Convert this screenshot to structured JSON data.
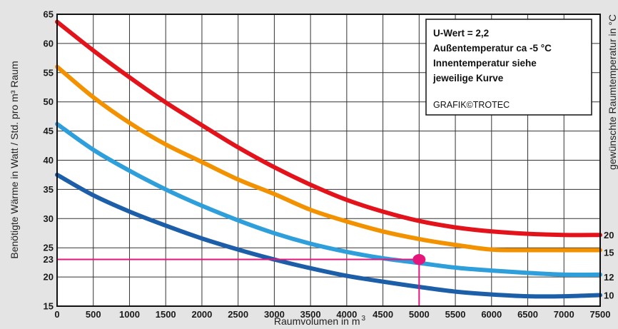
{
  "chart_data": {
    "type": "line",
    "xlabel": "Raumvolumen in m",
    "xlabel_sup": "3",
    "ylabel": "Benötigte Wärme in Watt / Std. pro m³ Raum",
    "ylabel_right": "gewünschte Raumtemperatur in °C",
    "xlim": [
      0,
      7500
    ],
    "ylim": [
      15,
      65
    ],
    "x_ticks": [
      0,
      500,
      1000,
      1500,
      2000,
      2500,
      3000,
      3500,
      4000,
      4500,
      5000,
      5500,
      6000,
      6500,
      7000,
      7500
    ],
    "y_ticks": [
      15,
      20,
      25,
      30,
      35,
      40,
      45,
      50,
      55,
      60,
      65
    ],
    "grid": true,
    "series": [
      {
        "name": "20",
        "color": "#e3131b",
        "x": [
          0,
          500,
          1000,
          1500,
          2000,
          2500,
          3000,
          3500,
          4000,
          4500,
          5000,
          5500,
          6000,
          6500,
          7000,
          7500
        ],
        "y": [
          63.7,
          58.8,
          54.2,
          49.9,
          46.0,
          42.2,
          38.8,
          35.8,
          33.2,
          31.2,
          29.6,
          28.5,
          27.8,
          27.4,
          27.2,
          27.2
        ]
      },
      {
        "name": "15",
        "color": "#f29200",
        "x": [
          0,
          500,
          1000,
          1500,
          2000,
          2500,
          3000,
          3500,
          4000,
          4500,
          5000,
          5500,
          6000,
          6500,
          7000,
          7500
        ],
        "y": [
          56.0,
          50.8,
          46.4,
          42.7,
          39.7,
          36.7,
          34.2,
          31.5,
          29.5,
          27.8,
          26.5,
          25.5,
          24.7,
          24.6,
          24.6,
          24.6
        ]
      },
      {
        "name": "12",
        "color": "#2f9fdb",
        "x": [
          0,
          500,
          1000,
          1500,
          2000,
          2500,
          3000,
          3500,
          4000,
          4500,
          5000,
          5500,
          6000,
          6500,
          7000,
          7500
        ],
        "y": [
          46.2,
          41.8,
          38.2,
          35.0,
          32.2,
          29.7,
          27.5,
          25.7,
          24.3,
          23.2,
          22.4,
          21.6,
          21.1,
          20.7,
          20.4,
          20.4
        ]
      },
      {
        "name": "10",
        "color": "#1d5ea8",
        "x": [
          0,
          500,
          1000,
          1500,
          2000,
          2500,
          3000,
          3500,
          4000,
          4500,
          5000,
          5500,
          6000,
          6500,
          7000,
          7500
        ],
        "y": [
          37.5,
          34.0,
          31.2,
          28.8,
          26.6,
          24.7,
          23.0,
          21.5,
          20.2,
          19.2,
          18.3,
          17.5,
          17.0,
          16.7,
          16.7,
          16.9
        ]
      }
    ],
    "highlight": {
      "x": 5000,
      "y": 23,
      "x_label": "5000",
      "y_label": "23",
      "color": "#e6157a"
    },
    "right_labels": [
      {
        "text": "20",
        "y": 27.2,
        "color": "#111111"
      },
      {
        "text": "15",
        "y": 24.2,
        "color": "#111111"
      },
      {
        "text": "12",
        "y": 20.0,
        "color": "#e6157a"
      },
      {
        "text": "10",
        "y": 16.9,
        "color": "#111111"
      }
    ],
    "annotation_box": {
      "lines": [
        "U-Wert = 2,2",
        "Außentemperatur ca -5 °C",
        "Innentemperatur siehe",
        "jeweilige Kurve"
      ],
      "credit": "GRAFIK©TROTEC"
    }
  }
}
